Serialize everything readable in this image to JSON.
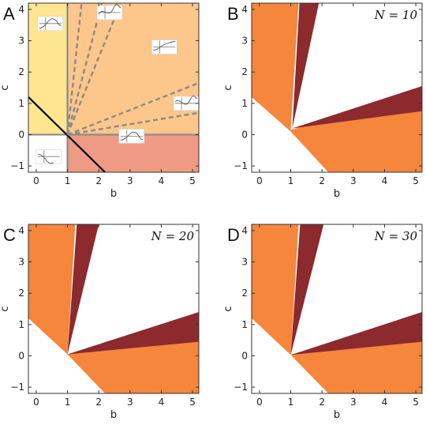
{
  "figure": {
    "x_ticks": [
      "0",
      "1",
      "2",
      "3",
      "4",
      "5"
    ],
    "y_ticks": [
      "4",
      "3",
      "2",
      "1",
      "0",
      "−1"
    ],
    "xlabel": "b",
    "ylabel": "c"
  },
  "colors": {
    "yellow": "#fde68f",
    "peach": "#fdc68a",
    "salmon": "#ef9a85",
    "orange": "#f5863c",
    "darkred": "#8c2a2e",
    "gray_line": "#8a8a8a",
    "black_line": "#000000"
  },
  "chart_data": [
    {
      "type": "area",
      "panel_label": "A",
      "xlabel": "b",
      "ylabel": "c",
      "xlim": [
        -0.25,
        5.2
      ],
      "ylim": [
        -1.2,
        4.2
      ],
      "regions": [
        {
          "color": "yellow",
          "description": "b < 1, c > 0"
        },
        {
          "color": "peach",
          "description": "b > 1, c > 0"
        },
        {
          "color": "salmon",
          "description": "b > 1, c < 0"
        }
      ],
      "lines": [
        {
          "style": "solid-gray",
          "points": [
            [
              1,
              -1.2
            ],
            [
              1,
              4.2
            ]
          ]
        },
        {
          "style": "solid-gray",
          "points": [
            [
              -0.25,
              0
            ],
            [
              5.2,
              0
            ]
          ]
        },
        {
          "style": "solid-black",
          "points": [
            [
              -0.25,
              1.2
            ],
            [
              2.2,
              -1.2
            ]
          ]
        },
        {
          "style": "dashed-gray",
          "points": [
            [
              1,
              0
            ],
            [
              1.45,
              4.2
            ]
          ]
        },
        {
          "style": "dashed-gray",
          "points": [
            [
              1,
              0
            ],
            [
              2.1,
              4.2
            ]
          ]
        },
        {
          "style": "dashed-gray",
          "points": [
            [
              1,
              0
            ],
            [
              2.7,
              4.2
            ]
          ]
        },
        {
          "style": "dashed-gray",
          "points": [
            [
              1,
              0
            ],
            [
              5.2,
              1.65
            ]
          ]
        },
        {
          "style": "dashed-gray",
          "points": [
            [
              1,
              0
            ],
            [
              5.2,
              0.7
            ]
          ]
        }
      ],
      "insets": [
        {
          "b": 0.45,
          "c": 3.55
        },
        {
          "b": 2.35,
          "c": 3.9
        },
        {
          "b": 4.1,
          "c": 2.8
        },
        {
          "b": 4.8,
          "c": 1.0
        },
        {
          "b": 3.05,
          "c": -0.05
        },
        {
          "b": 0.4,
          "c": -0.7
        }
      ]
    },
    {
      "type": "area",
      "panel_label": "B",
      "n_label": "N = 10",
      "xlabel": "b",
      "ylabel": "c",
      "xlim": [
        -0.25,
        5.2
      ],
      "ylim": [
        -1.2,
        4.2
      ],
      "orange_region": [
        [
          -0.25,
          4.2
        ],
        [
          1.25,
          4.2
        ],
        [
          1,
          0.15
        ],
        [
          5.2,
          1.4
        ],
        [
          5.2,
          -1.2
        ],
        [
          2.2,
          -1.2
        ],
        [
          1,
          0.1
        ],
        [
          -0.25,
          1.2
        ]
      ],
      "darkred_wedges": [
        [
          [
            1.28,
            4.2
          ],
          [
            1.9,
            4.2
          ],
          [
            1.05,
            0.2
          ]
        ],
        [
          [
            1.05,
            0.2
          ],
          [
            5.2,
            1.55
          ],
          [
            5.2,
            0.75
          ]
        ]
      ]
    },
    {
      "type": "area",
      "panel_label": "C",
      "n_label": "N = 20",
      "xlabel": "b",
      "ylabel": "c",
      "xlim": [
        -0.25,
        5.2
      ],
      "ylim": [
        -1.2,
        4.2
      ],
      "orange_region": [
        [
          -0.25,
          4.2
        ],
        [
          1.25,
          4.2
        ],
        [
          1,
          0.05
        ],
        [
          5.2,
          1.2
        ],
        [
          5.2,
          -1.2
        ],
        [
          2.2,
          -1.2
        ],
        [
          1,
          0.05
        ],
        [
          -0.25,
          1.2
        ]
      ],
      "darkred_wedges": [
        [
          [
            1.3,
            4.2
          ],
          [
            2.0,
            4.2
          ],
          [
            1.0,
            0.05
          ]
        ],
        [
          [
            1.0,
            0.05
          ],
          [
            5.2,
            1.4
          ],
          [
            5.2,
            0.45
          ]
        ]
      ]
    },
    {
      "type": "area",
      "panel_label": "D",
      "n_label": "N = 30",
      "xlabel": "b",
      "ylabel": "c",
      "xlim": [
        -0.25,
        5.2
      ],
      "ylim": [
        -1.2,
        4.2
      ],
      "orange_region": [
        [
          -0.25,
          4.2
        ],
        [
          1.25,
          4.2
        ],
        [
          1,
          0.03
        ],
        [
          5.2,
          1.1
        ],
        [
          5.2,
          -1.2
        ],
        [
          2.2,
          -1.2
        ],
        [
          1,
          0.03
        ],
        [
          -0.25,
          1.2
        ]
      ],
      "darkred_wedges": [
        [
          [
            1.3,
            4.2
          ],
          [
            2.05,
            4.2
          ],
          [
            1.0,
            0.03
          ]
        ],
        [
          [
            1.0,
            0.03
          ],
          [
            5.2,
            1.4
          ],
          [
            5.2,
            0.45
          ]
        ]
      ]
    }
  ]
}
